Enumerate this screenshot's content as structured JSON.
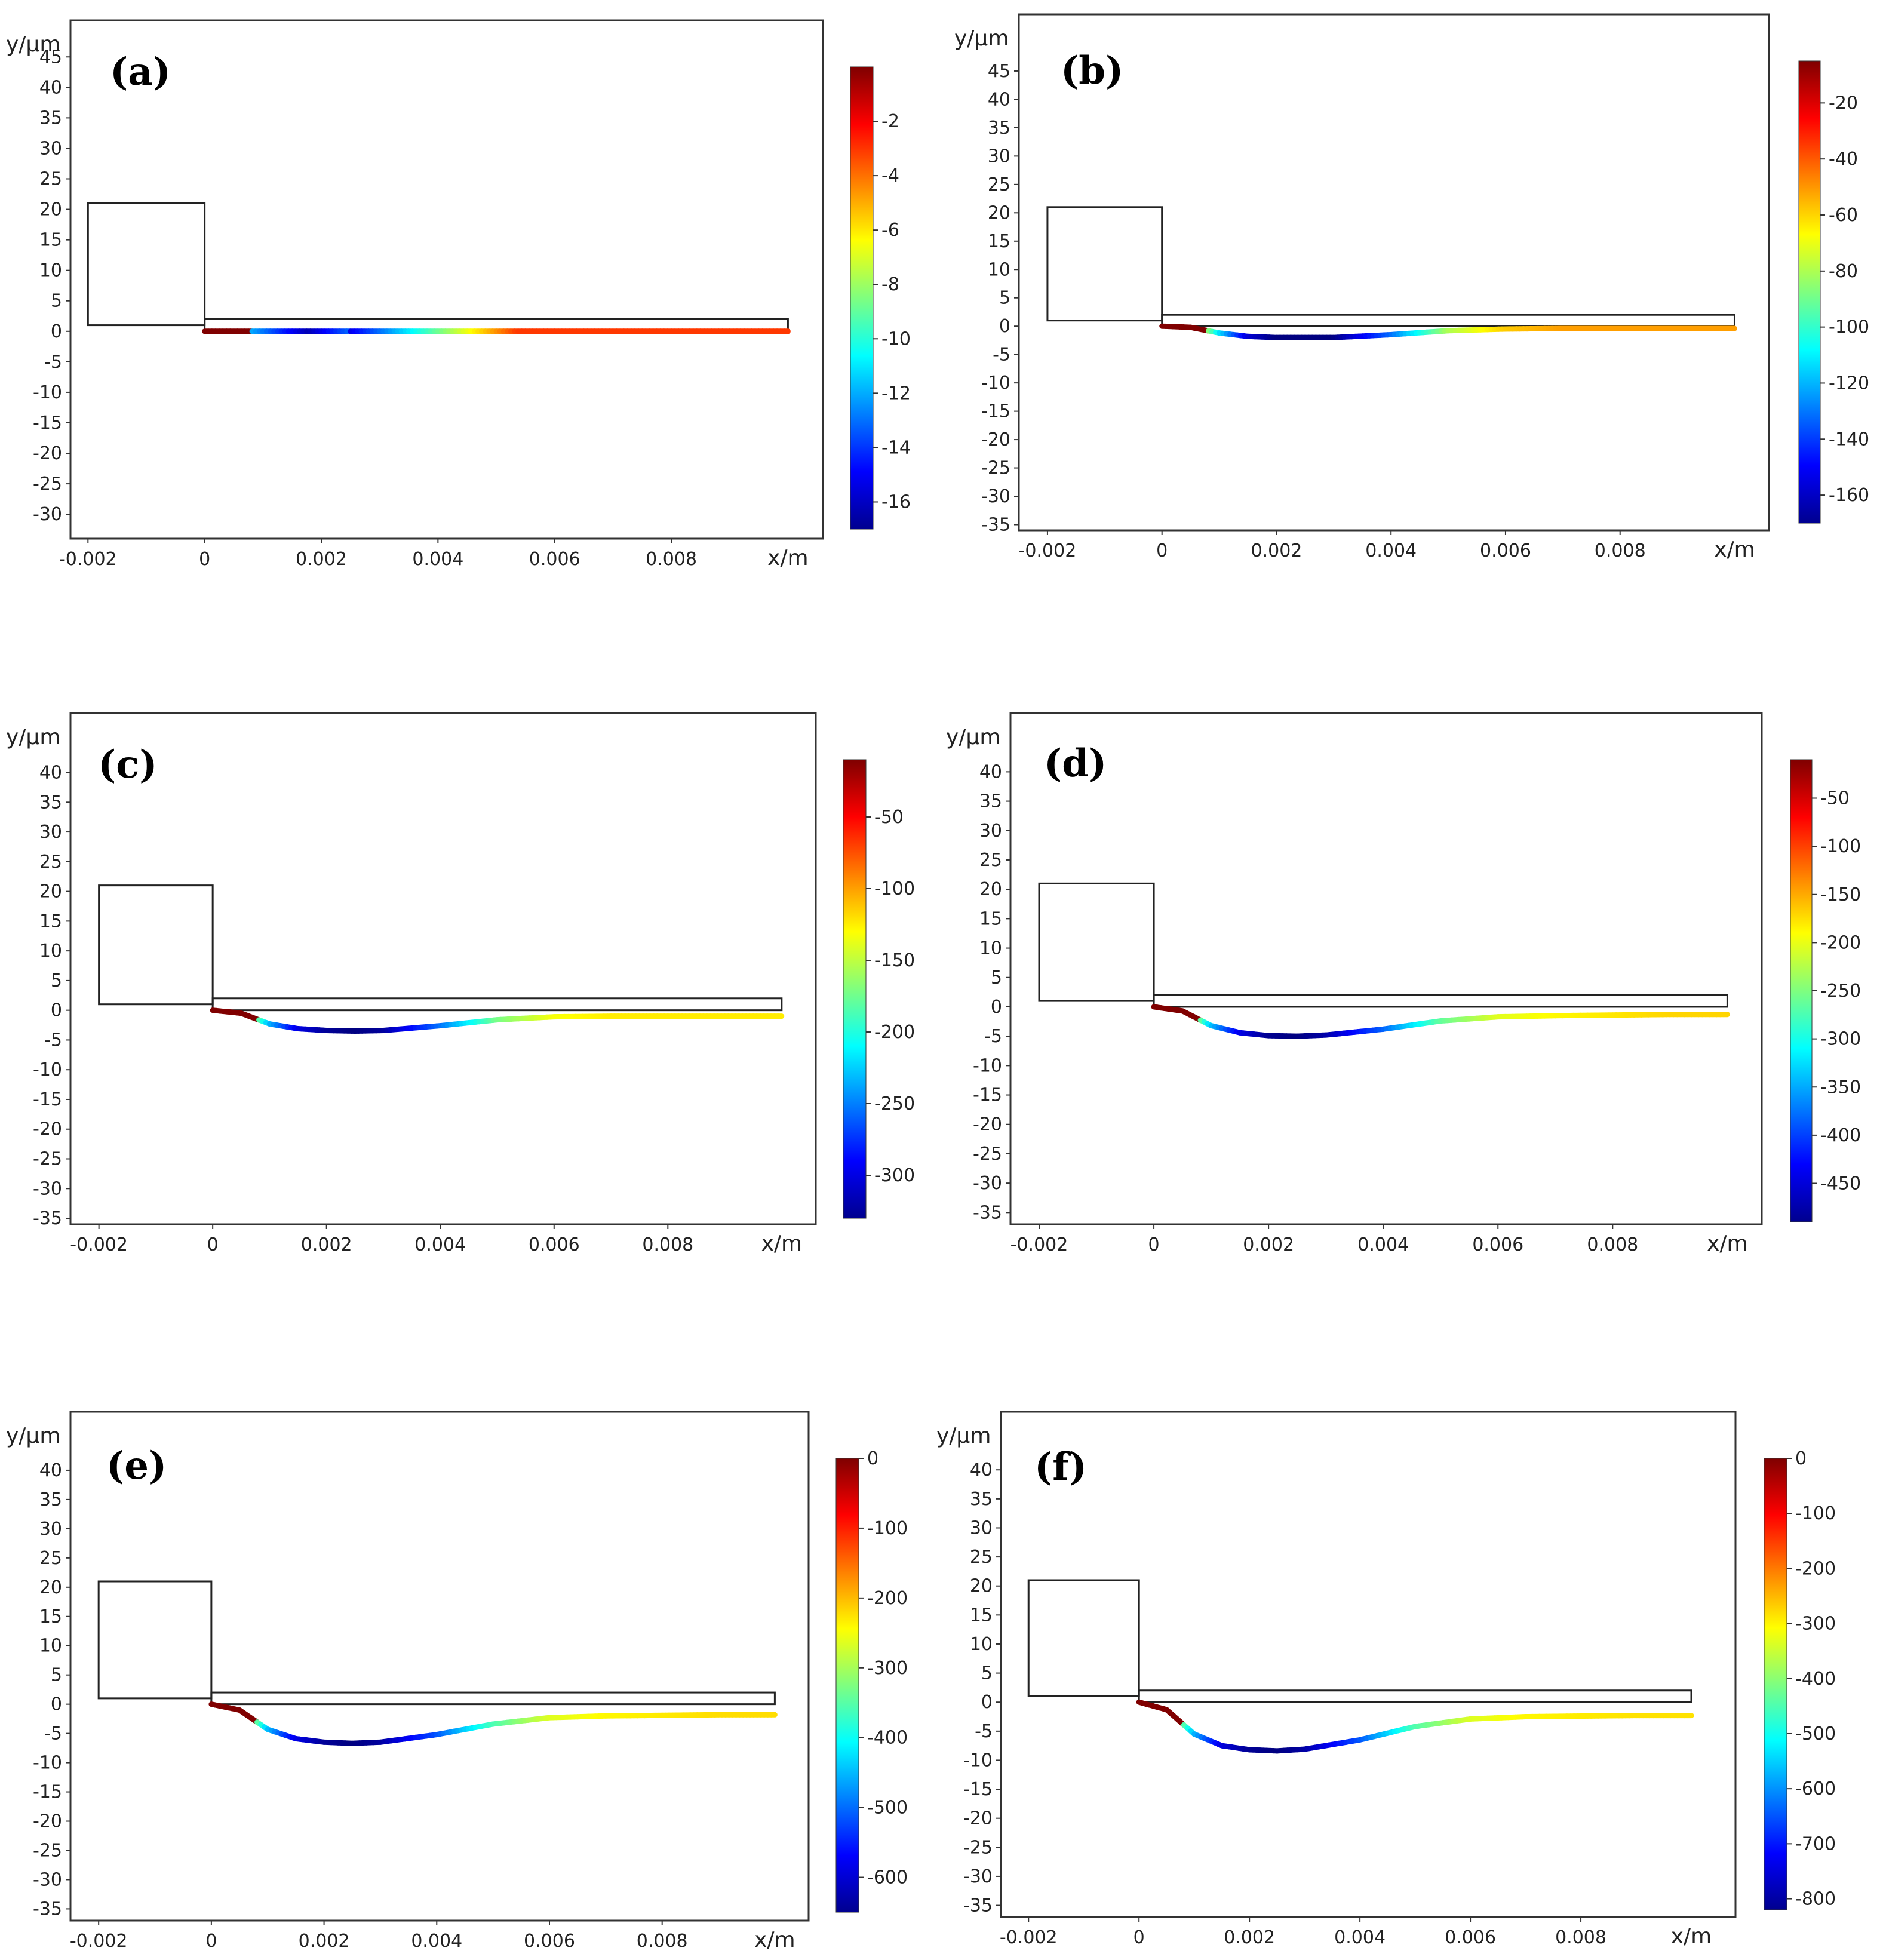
{
  "chart_data": [
    {
      "panel": "(a)",
      "type": "line",
      "xlabel": "x/m",
      "ylabel": "y/μm",
      "xlim": [
        -0.0023,
        0.0106
      ],
      "ylim": [
        -34,
        51
      ],
      "xticks": [
        -0.002,
        0,
        0.002,
        0.004,
        0.006,
        0.008
      ],
      "xtick_labels": [
        "-0.002",
        "0",
        "0.002",
        "0.004",
        "0.006",
        "0.008"
      ],
      "yticks": [
        45,
        40,
        35,
        30,
        25,
        20,
        15,
        10,
        5,
        0,
        -5,
        -10,
        -15,
        -20,
        -25,
        -30
      ],
      "colorbar": {
        "min": -17,
        "max": 0,
        "ticks": [
          -2,
          -4,
          -6,
          -8,
          -10,
          -12,
          -14,
          -16
        ]
      },
      "outline": {
        "base_x": [
          -0.002,
          0
        ],
        "base_y": [
          1,
          21
        ],
        "beam_x_end": 0.01,
        "beam_y": [
          0,
          2
        ]
      },
      "deflection_curve": {
        "x": [
          0,
          0.0005,
          0.001,
          0.0015,
          0.002,
          0.003,
          0.004,
          0.005,
          0.006,
          0.007,
          0.008,
          0.009,
          0.01
        ],
        "y": [
          0,
          0,
          0,
          0,
          0,
          0,
          0,
          0,
          0,
          0,
          0,
          0,
          0
        ]
      }
    },
    {
      "panel": "(b)",
      "type": "line",
      "xlabel": "x/m",
      "ylabel": "y/μm",
      "xlim": [
        -0.0025,
        0.0106
      ],
      "ylim": [
        -36,
        55
      ],
      "xticks": [
        -0.002,
        0,
        0.002,
        0.004,
        0.006,
        0.008
      ],
      "xtick_labels": [
        "-0.002",
        "0",
        "0.002",
        "0.004",
        "0.006",
        "0.008"
      ],
      "yticks": [
        45,
        40,
        35,
        30,
        25,
        20,
        15,
        10,
        5,
        0,
        -5,
        -10,
        -15,
        -20,
        -25,
        -30,
        -35
      ],
      "colorbar": {
        "min": -170,
        "max": -5,
        "ticks": [
          -20,
          -40,
          -60,
          -80,
          -100,
          -120,
          -140,
          -160
        ]
      },
      "outline": {
        "base_x": [
          -0.002,
          0
        ],
        "base_y": [
          1,
          21
        ],
        "beam_x_end": 0.01,
        "beam_y": [
          0,
          2
        ]
      },
      "deflection_curve": {
        "x": [
          0,
          0.0005,
          0.001,
          0.0015,
          0.002,
          0.003,
          0.004,
          0.005,
          0.006,
          0.007,
          0.008,
          0.009,
          0.01
        ],
        "y": [
          0,
          -0.2,
          -1.2,
          -1.8,
          -2.0,
          -2.0,
          -1.5,
          -0.8,
          -0.5,
          -0.4,
          -0.4,
          -0.4,
          -0.4
        ]
      }
    },
    {
      "panel": "(c)",
      "type": "line",
      "xlabel": "x/m",
      "ylabel": "y/μm",
      "xlim": [
        -0.0025,
        0.0106
      ],
      "ylim": [
        -36,
        50
      ],
      "xticks": [
        -0.002,
        0,
        0.002,
        0.004,
        0.006,
        0.008
      ],
      "xtick_labels": [
        "-0.002",
        "0",
        "0.002",
        "0.004",
        "0.006",
        "0.008"
      ],
      "yticks": [
        40,
        35,
        30,
        25,
        20,
        15,
        10,
        5,
        0,
        -5,
        -10,
        -15,
        -20,
        -25,
        -30,
        -35
      ],
      "colorbar": {
        "min": -330,
        "max": -10,
        "ticks": [
          -50,
          -100,
          -150,
          -200,
          -250,
          -300
        ]
      },
      "outline": {
        "base_x": [
          -0.002,
          0
        ],
        "base_y": [
          1,
          21
        ],
        "beam_x_end": 0.01,
        "beam_y": [
          0,
          2
        ]
      },
      "deflection_curve": {
        "x": [
          0,
          0.0005,
          0.001,
          0.0015,
          0.002,
          0.0025,
          0.003,
          0.004,
          0.005,
          0.006,
          0.007,
          0.008,
          0.009,
          0.01
        ],
        "y": [
          0,
          -0.5,
          -2.3,
          -3.1,
          -3.4,
          -3.5,
          -3.4,
          -2.6,
          -1.6,
          -1.1,
          -1.0,
          -1.0,
          -1.0,
          -1.0
        ]
      }
    },
    {
      "panel": "(d)",
      "type": "line",
      "xlabel": "x/m",
      "ylabel": "y/μm",
      "xlim": [
        -0.0025,
        0.0106
      ],
      "ylim": [
        -37,
        50
      ],
      "xticks": [
        -0.002,
        0,
        0.002,
        0.004,
        0.006,
        0.008
      ],
      "xtick_labels": [
        "-0.002",
        "0",
        "0.002",
        "0.004",
        "0.006",
        "0.008"
      ],
      "yticks": [
        40,
        35,
        30,
        25,
        20,
        15,
        10,
        5,
        0,
        -5,
        -10,
        -15,
        -20,
        -25,
        -30,
        -35
      ],
      "colorbar": {
        "min": -490,
        "max": -10,
        "ticks": [
          -50,
          -100,
          -150,
          -200,
          -250,
          -300,
          -350,
          -400,
          -450
        ]
      },
      "outline": {
        "base_x": [
          -0.002,
          0
        ],
        "base_y": [
          1,
          21
        ],
        "beam_x_end": 0.01,
        "beam_y": [
          0,
          2
        ]
      },
      "deflection_curve": {
        "x": [
          0,
          0.0005,
          0.001,
          0.0015,
          0.002,
          0.0025,
          0.003,
          0.004,
          0.005,
          0.006,
          0.007,
          0.008,
          0.009,
          0.01
        ],
        "y": [
          0,
          -0.7,
          -3.2,
          -4.4,
          -4.9,
          -5.0,
          -4.8,
          -3.8,
          -2.4,
          -1.7,
          -1.5,
          -1.4,
          -1.3,
          -1.3
        ]
      }
    },
    {
      "panel": "(e)",
      "type": "line",
      "xlabel": "x/m",
      "ylabel": "y/μm",
      "xlim": [
        -0.0025,
        0.0106
      ],
      "ylim": [
        -37,
        50
      ],
      "xticks": [
        -0.002,
        0,
        0.002,
        0.004,
        0.006,
        0.008
      ],
      "xtick_labels": [
        "-0.002",
        "0",
        "0.002",
        "0.004",
        "0.006",
        "0.008"
      ],
      "yticks": [
        40,
        35,
        30,
        25,
        20,
        15,
        10,
        5,
        0,
        -5,
        -10,
        -15,
        -20,
        -25,
        -30,
        -35
      ],
      "colorbar": {
        "min": -650,
        "max": 0,
        "ticks": [
          0,
          -100,
          -200,
          -300,
          -400,
          -500,
          -600
        ]
      },
      "outline": {
        "base_x": [
          -0.002,
          0
        ],
        "base_y": [
          1,
          21
        ],
        "beam_x_end": 0.01,
        "beam_y": [
          0,
          2
        ]
      },
      "deflection_curve": {
        "x": [
          0,
          0.0005,
          0.001,
          0.0015,
          0.002,
          0.0025,
          0.003,
          0.004,
          0.005,
          0.006,
          0.007,
          0.008,
          0.009,
          0.01
        ],
        "y": [
          0,
          -1.0,
          -4.3,
          -5.9,
          -6.5,
          -6.7,
          -6.5,
          -5.2,
          -3.4,
          -2.3,
          -2.0,
          -1.9,
          -1.8,
          -1.8
        ]
      }
    },
    {
      "panel": "(f)",
      "type": "line",
      "xlabel": "x/m",
      "ylabel": "y/μm",
      "xlim": [
        -0.0025,
        0.0108
      ],
      "ylim": [
        -37,
        50
      ],
      "xticks": [
        -0.002,
        0,
        0.002,
        0.004,
        0.006,
        0.008
      ],
      "xtick_labels": [
        "-0.002",
        "0",
        "0.002",
        "0.004",
        "0.006",
        "0.008"
      ],
      "yticks": [
        40,
        35,
        30,
        25,
        20,
        15,
        10,
        5,
        0,
        -5,
        -10,
        -15,
        -20,
        -25,
        -30,
        -35
      ],
      "colorbar": {
        "min": -820,
        "max": 0,
        "ticks": [
          0,
          -100,
          -200,
          -300,
          -400,
          -500,
          -600,
          -700,
          -800
        ]
      },
      "outline": {
        "base_x": [
          -0.002,
          0
        ],
        "base_y": [
          1,
          21
        ],
        "beam_x_end": 0.01,
        "beam_y": [
          0,
          2
        ]
      },
      "deflection_curve": {
        "x": [
          0,
          0.0005,
          0.001,
          0.0015,
          0.002,
          0.0025,
          0.003,
          0.004,
          0.005,
          0.006,
          0.007,
          0.008,
          0.009,
          0.01
        ],
        "y": [
          0,
          -1.3,
          -5.5,
          -7.5,
          -8.2,
          -8.4,
          -8.1,
          -6.5,
          -4.2,
          -2.9,
          -2.5,
          -2.4,
          -2.3,
          -2.3
        ]
      }
    }
  ]
}
